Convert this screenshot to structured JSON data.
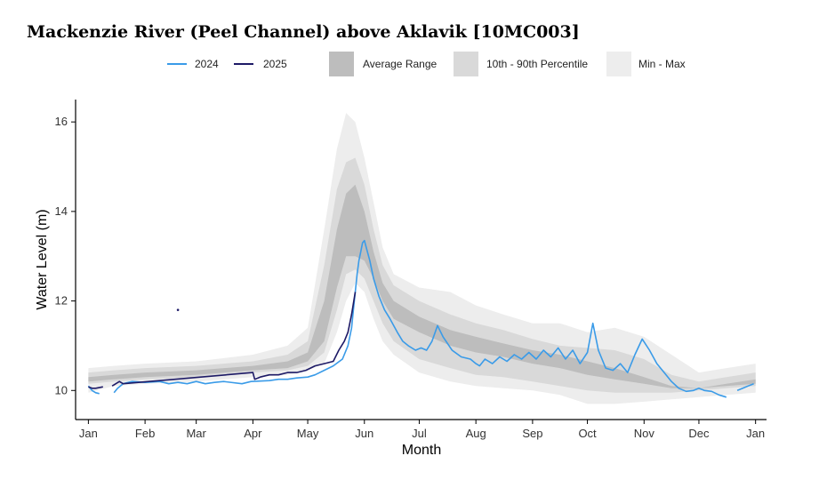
{
  "chart_data": {
    "type": "line",
    "title": "Mackenzie River (Peel Channel) above Aklavik [10MC003]",
    "xlabel": "Month",
    "ylabel": "Water Level (m)",
    "x_ticks": [
      "Jan",
      "Feb",
      "Mar",
      "Apr",
      "May",
      "Jun",
      "Jul",
      "Aug",
      "Sep",
      "Oct",
      "Nov",
      "Dec",
      "Jan"
    ],
    "y_ticks": [
      10,
      12,
      14,
      16
    ],
    "xlim_day": [
      -6,
      372
    ],
    "ylim": [
      9.35,
      16.5
    ],
    "legend": {
      "series_2024": "2024",
      "series_2025": "2025",
      "avg_range": "Average Range",
      "pct_range": "10th - 90th Percentile",
      "minmax": "Min - Max"
    },
    "colors": {
      "series_2024": "#3a9be8",
      "series_2025": "#1d1a66",
      "avg_range": "#bdbdbd",
      "pct_range": "#d9d9d9",
      "minmax": "#ededed"
    },
    "bands": {
      "day": [
        1,
        15,
        32,
        60,
        91,
        110,
        121,
        130,
        137,
        142,
        147,
        152,
        157,
        162,
        168,
        182,
        199,
        213,
        228,
        244,
        259,
        274,
        289,
        305,
        320,
        335,
        350,
        366
      ],
      "min": [
        9.95,
        10.1,
        10.15,
        10.2,
        10.3,
        10.35,
        10.45,
        10.6,
        11.3,
        12.0,
        12.4,
        12.2,
        11.6,
        11.1,
        10.8,
        10.4,
        10.2,
        10.1,
        10.05,
        10.0,
        9.9,
        9.7,
        9.7,
        9.75,
        9.8,
        9.85,
        9.9,
        9.95
      ],
      "p10": [
        10.15,
        10.2,
        10.25,
        10.3,
        10.4,
        10.45,
        10.55,
        10.85,
        11.8,
        12.6,
        12.7,
        12.5,
        12.0,
        11.5,
        11.1,
        10.7,
        10.5,
        10.35,
        10.3,
        10.2,
        10.1,
        10.0,
        9.95,
        9.95,
        9.95,
        10.0,
        10.05,
        10.1
      ],
      "avg_low": [
        10.2,
        10.25,
        10.3,
        10.35,
        10.45,
        10.5,
        10.65,
        11.1,
        12.3,
        13.0,
        13.0,
        12.9,
        12.5,
        12.0,
        11.6,
        11.3,
        11.0,
        10.85,
        10.75,
        10.6,
        10.5,
        10.35,
        10.25,
        10.15,
        10.05,
        10.05,
        10.1,
        10.15
      ],
      "avg_high": [
        10.3,
        10.35,
        10.4,
        10.45,
        10.55,
        10.65,
        10.85,
        12.0,
        13.6,
        14.4,
        14.6,
        14.0,
        13.1,
        12.4,
        12.0,
        11.65,
        11.35,
        11.2,
        11.05,
        10.9,
        10.8,
        10.65,
        10.5,
        10.3,
        10.1,
        10.05,
        10.15,
        10.25
      ],
      "p90": [
        10.4,
        10.45,
        10.5,
        10.55,
        10.65,
        10.8,
        11.1,
        12.8,
        14.5,
        15.1,
        15.2,
        14.6,
        13.6,
        12.8,
        12.35,
        12.0,
        11.7,
        11.5,
        11.35,
        11.15,
        11.0,
        10.95,
        10.9,
        10.7,
        10.35,
        10.2,
        10.3,
        10.4
      ],
      "max": [
        10.5,
        10.55,
        10.6,
        10.65,
        10.8,
        11.0,
        11.4,
        13.6,
        15.4,
        16.2,
        16.0,
        15.2,
        14.2,
        13.2,
        12.6,
        12.3,
        12.2,
        11.9,
        11.7,
        11.5,
        11.5,
        11.3,
        11.4,
        11.2,
        10.8,
        10.4,
        10.5,
        10.6
      ]
    },
    "series_2024": {
      "day": [
        1,
        3,
        5,
        7,
        13,
        15,
        17,
        20,
        25,
        32,
        40,
        45,
        50,
        55,
        60,
        65,
        70,
        75,
        85,
        90,
        100,
        105,
        110,
        115,
        121,
        125,
        130,
        135,
        140,
        143,
        145,
        146,
        147,
        148,
        149,
        150,
        151,
        152,
        153,
        155,
        157,
        160,
        163,
        166,
        170,
        173,
        176,
        180,
        183,
        186,
        189,
        192,
        195,
        200,
        205,
        210,
        213,
        215,
        218,
        222,
        226,
        230,
        234,
        238,
        242,
        246,
        250,
        254,
        258,
        262,
        266,
        270,
        274,
        277,
        280,
        284,
        288,
        292,
        296,
        300,
        304,
        308,
        312,
        316,
        320,
        324,
        328,
        332,
        335,
        338,
        342,
        346,
        350,
        353,
        356,
        359,
        362,
        365
      ],
      "val": [
        10.1,
        10.0,
        9.95,
        9.93,
        null,
        9.95,
        10.05,
        10.15,
        10.2,
        10.18,
        10.2,
        10.15,
        10.18,
        10.15,
        10.2,
        10.15,
        10.18,
        10.2,
        10.15,
        10.2,
        10.22,
        10.25,
        10.25,
        10.28,
        10.3,
        10.35,
        10.45,
        10.55,
        10.7,
        11.0,
        11.4,
        11.8,
        12.2,
        12.6,
        12.9,
        13.1,
        13.3,
        13.35,
        13.2,
        12.9,
        12.5,
        12.1,
        11.8,
        11.6,
        11.3,
        11.1,
        11.0,
        10.9,
        10.95,
        10.9,
        11.1,
        11.45,
        11.2,
        10.9,
        10.75,
        10.7,
        10.6,
        10.55,
        10.7,
        10.6,
        10.75,
        10.65,
        10.8,
        10.7,
        10.85,
        10.7,
        10.9,
        10.75,
        10.95,
        10.7,
        10.9,
        10.6,
        10.85,
        11.5,
        10.9,
        10.5,
        10.45,
        10.6,
        10.4,
        10.8,
        11.15,
        10.9,
        10.6,
        10.4,
        10.2,
        10.05,
        9.98,
        10.0,
        10.05,
        10.0,
        9.98,
        9.9,
        9.85,
        null,
        10.0,
        10.05,
        10.1,
        10.15
      ]
    },
    "series_2025": {
      "day": [
        1,
        3,
        5,
        9,
        12,
        14,
        16,
        18,
        20,
        91,
        92,
        95,
        100,
        105,
        110,
        115,
        120,
        125,
        130,
        135,
        138,
        141,
        143,
        145,
        147
      ],
      "val": [
        10.08,
        10.05,
        10.05,
        10.08,
        null,
        10.1,
        10.15,
        10.2,
        10.15,
        10.4,
        10.25,
        10.3,
        10.35,
        10.35,
        10.4,
        10.4,
        10.45,
        10.55,
        10.6,
        10.65,
        10.9,
        11.1,
        11.3,
        11.7,
        12.2
      ]
    },
    "isolated_points_2025": [
      {
        "x": 50,
        "y": 11.8
      }
    ]
  }
}
